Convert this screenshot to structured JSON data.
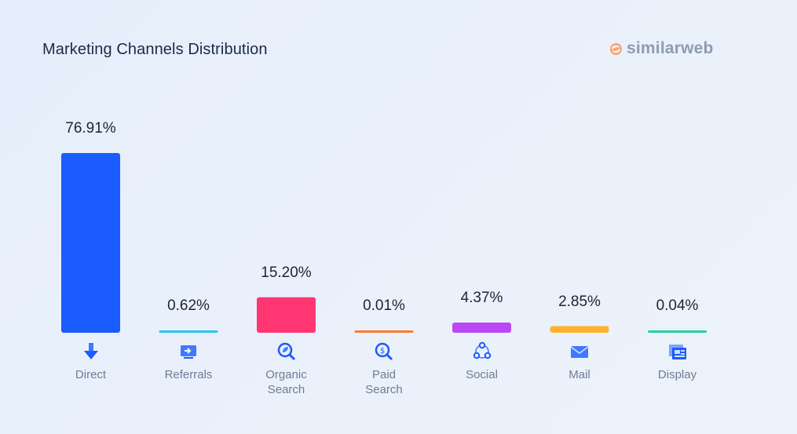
{
  "header": {
    "title": "Marketing Channels Distribution",
    "brand": "similarweb"
  },
  "chart_data": {
    "type": "bar",
    "title": "Marketing Channels Distribution",
    "xlabel": "",
    "ylabel": "",
    "grid": false,
    "legend": "none",
    "categories": [
      "Direct",
      "Referrals",
      "Organic\nSearch",
      "Paid\nSearch",
      "Social",
      "Mail",
      "Display"
    ],
    "values": [
      76.91,
      0.62,
      15.2,
      0.01,
      4.37,
      2.85,
      0.04
    ],
    "value_labels": [
      "76.91%",
      "0.62%",
      "15.20%",
      "0.01%",
      "4.37%",
      "2.85%",
      "0.04%"
    ],
    "colors": [
      "#1b5cff",
      "#26c6f0",
      "#ff3672",
      "#ff7a2e",
      "#bb48f5",
      "#ffb32c",
      "#1fd4a2"
    ],
    "icons": [
      "direct-arrow-icon",
      "referrals-icon",
      "organic-search-icon",
      "paid-search-icon",
      "social-icon",
      "mail-icon",
      "display-icon"
    ]
  }
}
